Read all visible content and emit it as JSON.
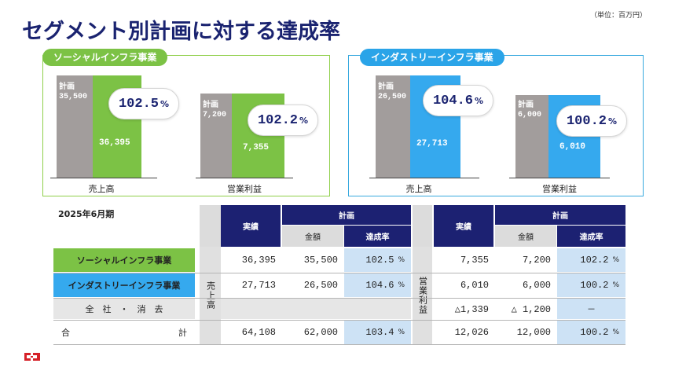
{
  "unit_note": "（単位：百万円）",
  "title": "セグメント別計画に対する達成率",
  "panels": {
    "social": {
      "tag": "ソーシャルインフラ事業",
      "sales": {
        "plan_caption": "計画",
        "plan_value": "35,500",
        "actual_value": "36,395",
        "rate": "102.5",
        "pct": "%",
        "category": "売上高",
        "plan_num": 35500,
        "actual_num": 36395
      },
      "profit": {
        "plan_caption": "計画",
        "plan_value": "7,200",
        "actual_value": "7,355",
        "rate": "102.2",
        "pct": "%",
        "category": "営業利益",
        "plan_num": 7200,
        "actual_num": 7355
      }
    },
    "infra": {
      "tag": "インダストリーインフラ事業",
      "sales": {
        "plan_caption": "計画",
        "plan_value": "26,500",
        "actual_value": "27,713",
        "rate": "104.6",
        "pct": "%",
        "category": "売上高",
        "plan_num": 26500,
        "actual_num": 27713
      },
      "profit": {
        "plan_caption": "計画",
        "plan_value": "6,000",
        "actual_value": "6,010",
        "rate": "100.2",
        "pct": "%",
        "category": "営業利益",
        "plan_num": 6000,
        "actual_num": 6010
      }
    }
  },
  "table": {
    "period": "2025年6月期",
    "headers": {
      "actual": "実績",
      "plan": "計画",
      "amount": "金額",
      "rate": "達成率"
    },
    "side_sales": "売上高",
    "side_profit": "営業利益",
    "pct": "%",
    "rows": [
      {
        "label": "ソーシャルインフラ事業",
        "s_actual": "36,395",
        "s_plan": "35,500",
        "s_rate": "102.5",
        "p_actual": "7,355",
        "p_plan": "7,200",
        "p_rate": "102.2"
      },
      {
        "label": "インダストリーインフラ事業",
        "s_actual": "27,713",
        "s_plan": "26,500",
        "s_rate": "104.6",
        "p_actual": "6,010",
        "p_plan": "6,000",
        "p_rate": "100.2"
      },
      {
        "label": "全　社　・　消　去",
        "s_actual": "",
        "s_plan": "",
        "s_rate": "",
        "p_actual": "△1,339",
        "p_plan": "△ 1,200",
        "p_rate": "－"
      },
      {
        "label_left": "合",
        "label_right": "計",
        "s_actual": "64,108",
        "s_plan": "62,000",
        "s_rate": "103.4",
        "p_actual": "12,026",
        "p_plan": "12,000",
        "p_rate": "100.2"
      }
    ]
  },
  "colors": {
    "navy": "#1c2172",
    "social_green": "#7cc245",
    "infra_blue": "#35a9ee",
    "plan_gray": "#a29d9c",
    "rate_bg": "#cde2f5"
  }
}
